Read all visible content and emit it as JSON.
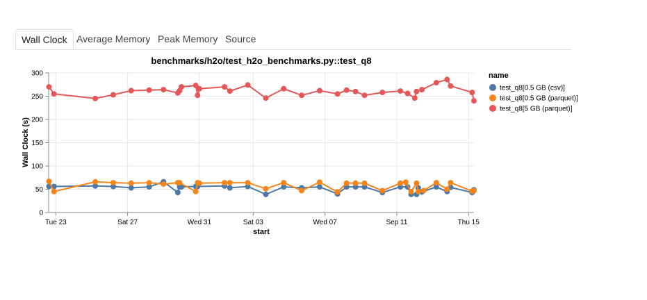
{
  "tabs": [
    {
      "label": "Wall Clock",
      "active": true
    },
    {
      "label": "Average Memory",
      "active": false
    },
    {
      "label": "Peak Memory",
      "active": false
    },
    {
      "label": "Source",
      "active": false
    }
  ],
  "chart_data": {
    "type": "line",
    "title": "benchmarks/h2o/test_h2o_benchmarks.py::test_q8",
    "xlabel": "start",
    "ylabel": "Wall Clock (s)",
    "ylim": [
      0,
      300
    ],
    "yticks": [
      0,
      50,
      100,
      150,
      200,
      250,
      300
    ],
    "xlim": [
      22.6,
      46.3
    ],
    "xticks": [
      {
        "x": 23,
        "label": "Tue 23"
      },
      {
        "x": 27,
        "label": "Sat 27"
      },
      {
        "x": 31,
        "label": "Wed 31"
      },
      {
        "x": 34,
        "label": "Sat 03"
      },
      {
        "x": 38,
        "label": "Wed 07"
      },
      {
        "x": 42,
        "label": "Sep 11"
      },
      {
        "x": 46,
        "label": "Thu 15"
      }
    ],
    "x_units": "day (Aug 23 = 23, Sep 1 = 32)",
    "grid": true,
    "legend_title": "name",
    "legend_position": "right",
    "series": [
      {
        "name": "test_q8[0.5 GB (csv)]",
        "color": "#4c78a8",
        "points": [
          [
            22.62,
            56
          ],
          [
            22.9,
            56
          ],
          [
            25.2,
            57
          ],
          [
            26.2,
            56
          ],
          [
            27.2,
            53
          ],
          [
            28.2,
            55
          ],
          [
            29.0,
            66
          ],
          [
            29.8,
            43
          ],
          [
            29.9,
            55
          ],
          [
            30.0,
            55
          ],
          [
            30.8,
            56
          ],
          [
            30.9,
            56
          ],
          [
            32.4,
            57
          ],
          [
            32.7,
            53
          ],
          [
            33.7,
            56
          ],
          [
            34.7,
            39
          ],
          [
            35.7,
            55
          ],
          [
            36.7,
            53
          ],
          [
            37.7,
            55
          ],
          [
            38.7,
            40
          ],
          [
            39.2,
            55
          ],
          [
            39.7,
            55
          ],
          [
            40.2,
            55
          ],
          [
            41.2,
            43
          ],
          [
            42.2,
            55
          ],
          [
            42.6,
            55
          ],
          [
            42.8,
            39
          ],
          [
            43.1,
            39
          ],
          [
            43.2,
            53
          ],
          [
            43.4,
            44
          ],
          [
            44.2,
            55
          ],
          [
            44.8,
            45
          ],
          [
            45.0,
            54
          ],
          [
            46.2,
            43
          ],
          [
            46.3,
            49
          ]
        ]
      },
      {
        "name": "test_q8[0.5 GB (parquet)]",
        "color": "#f58518",
        "points": [
          [
            22.62,
            67
          ],
          [
            22.9,
            45
          ],
          [
            25.2,
            66
          ],
          [
            26.2,
            64
          ],
          [
            27.2,
            63
          ],
          [
            28.2,
            64
          ],
          [
            29.0,
            61
          ],
          [
            29.8,
            64
          ],
          [
            29.9,
            64
          ],
          [
            30.8,
            45
          ],
          [
            30.9,
            64
          ],
          [
            31.0,
            63
          ],
          [
            32.4,
            64
          ],
          [
            32.7,
            64
          ],
          [
            33.7,
            64
          ],
          [
            34.7,
            51
          ],
          [
            35.7,
            64
          ],
          [
            36.7,
            47
          ],
          [
            37.7,
            65
          ],
          [
            38.7,
            44
          ],
          [
            39.2,
            63
          ],
          [
            39.7,
            63
          ],
          [
            40.2,
            63
          ],
          [
            41.2,
            47
          ],
          [
            42.2,
            63
          ],
          [
            42.5,
            65
          ],
          [
            42.8,
            45
          ],
          [
            43.1,
            63
          ],
          [
            43.2,
            45
          ],
          [
            43.5,
            47
          ],
          [
            44.2,
            64
          ],
          [
            44.8,
            50
          ],
          [
            45.0,
            64
          ],
          [
            46.2,
            46
          ],
          [
            46.3,
            47
          ]
        ]
      },
      {
        "name": "test_q8[5 GB (parquet)]",
        "color": "#e45756",
        "points": [
          [
            22.62,
            270
          ],
          [
            22.9,
            255
          ],
          [
            25.2,
            245
          ],
          [
            26.2,
            253
          ],
          [
            27.2,
            262
          ],
          [
            28.2,
            263
          ],
          [
            29.0,
            264
          ],
          [
            29.8,
            257
          ],
          [
            29.9,
            262
          ],
          [
            30.0,
            270
          ],
          [
            30.8,
            273
          ],
          [
            30.9,
            252
          ],
          [
            31.0,
            266
          ],
          [
            32.4,
            270
          ],
          [
            32.7,
            261
          ],
          [
            33.7,
            274
          ],
          [
            34.7,
            246
          ],
          [
            35.7,
            266
          ],
          [
            36.7,
            252
          ],
          [
            37.7,
            262
          ],
          [
            38.7,
            255
          ],
          [
            39.2,
            263
          ],
          [
            39.7,
            260
          ],
          [
            40.2,
            252
          ],
          [
            41.2,
            258
          ],
          [
            42.2,
            261
          ],
          [
            42.6,
            256
          ],
          [
            43.0,
            246
          ],
          [
            43.1,
            260
          ],
          [
            43.4,
            264
          ],
          [
            44.2,
            279
          ],
          [
            44.8,
            286
          ],
          [
            45.0,
            272
          ],
          [
            46.2,
            258
          ],
          [
            46.3,
            240
          ]
        ]
      }
    ]
  }
}
